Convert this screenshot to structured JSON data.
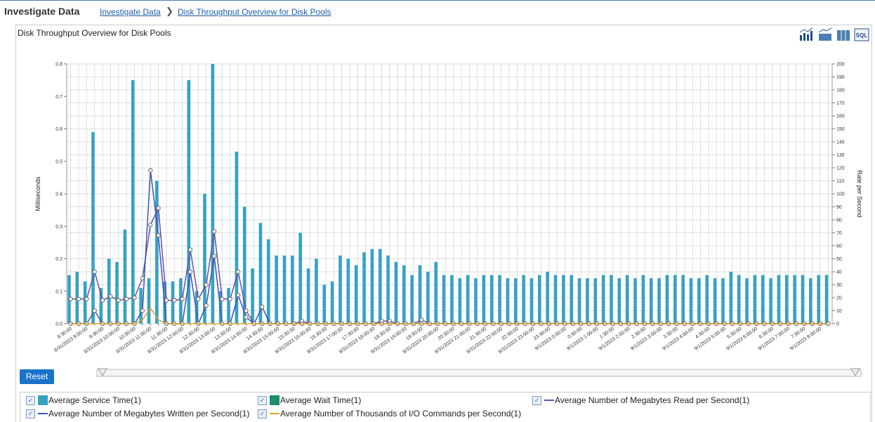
{
  "header": {
    "title": "Investigate Data",
    "breadcrumb": [
      "Investigate Data",
      "Disk Throughput Overview for Disk Pools"
    ]
  },
  "panel": {
    "title": "Disk Throughput Overview for Disk Pools",
    "reset": "Reset",
    "sql_icon": "SQL"
  },
  "chart_data": {
    "type": "combo",
    "ylabel": "Milliseconds",
    "y2label": "Rate per Second",
    "ylim": [
      0,
      0.8
    ],
    "yticks": [
      {
        "value": 0,
        "label": "0.0"
      },
      0.1,
      0.2,
      0.3,
      0.4,
      0.5,
      0.6,
      0.7,
      0.8
    ],
    "y2lim": [
      0,
      200
    ],
    "y2ticks": [
      0,
      10,
      20,
      30,
      40,
      50,
      60,
      70,
      80,
      90,
      100,
      110,
      120,
      130,
      140,
      150,
      160,
      170,
      180,
      190,
      200
    ],
    "grid": true,
    "categories": [
      "8:30:00",
      null,
      "8/31/2023 9:00:00",
      null,
      "9:30:00",
      null,
      "8/31/2023 10:00:00",
      null,
      "10:30:00",
      null,
      "8/31/2023 11:00:00",
      null,
      "11:30:00",
      null,
      "8/31/2023 12:00:00",
      null,
      "12:30:00",
      null,
      "8/31/2023 13:00:00",
      null,
      "13:30:00",
      null,
      "8/31/2023 14:00:00",
      null,
      "14:30:00",
      null,
      "8/31/2023 15:00:00",
      null,
      "15:30:00",
      null,
      "8/31/2023 16:00:00",
      null,
      "16:30:00",
      null,
      "8/31/2023 17:00:00",
      null,
      "17:30:00",
      null,
      "8/31/2023 18:00:00",
      null,
      "18:30:00",
      null,
      "8/31/2023 19:00:00",
      null,
      "19:30:00",
      null,
      "8/31/2023 20:00:00",
      null,
      "20:30:00",
      null,
      "8/31/2023 21:00:00",
      null,
      "21:30:00",
      null,
      "8/31/2023 22:00:00",
      null,
      "22:30:00",
      null,
      "8/31/2023 23:00:00",
      null,
      "23:30:00",
      null,
      "9/1/2023 0:00:00",
      null,
      "0:30:00",
      null,
      "9/1/2023 1:00:00",
      null,
      "1:30:00",
      null,
      "9/1/2023 2:00:00",
      null,
      "2:30:00",
      null,
      "9/1/2023 3:00:00",
      null,
      "3:30:00",
      null,
      "9/1/2023 4:00:00",
      null,
      "4:30:00",
      null,
      "9/1/2023 5:00:00",
      null,
      "5:30:00",
      null,
      "9/1/2023 6:00:00",
      null,
      "6:30:00",
      null,
      "9/1/2023 7:00:00",
      null,
      "7:30:00",
      null,
      "9/1/2023 8:00:00",
      null
    ],
    "series": [
      {
        "name": "Average Service Time(1)",
        "type": "bar",
        "color": "#35a2c4",
        "values": [
          0.15,
          0.16,
          0.13,
          0.59,
          0.11,
          0.2,
          0.19,
          0.29,
          0.75,
          0.11,
          0.14,
          0.44,
          0.13,
          0.13,
          0.14,
          0.75,
          0.1,
          0.4,
          0.8,
          0.1,
          0.11,
          0.53,
          0.36,
          0.17,
          0.31,
          0.26,
          0.21,
          0.21,
          0.21,
          0.28,
          0.17,
          0.2,
          0.12,
          0.13,
          0.21,
          0.2,
          0.18,
          0.22,
          0.23,
          0.23,
          0.21,
          0.19,
          0.18,
          0.15,
          0.18,
          0.16,
          0.19,
          0.15,
          0.15,
          0.14,
          0.15,
          0.14,
          0.15,
          0.15,
          0.15,
          0.14,
          0.14,
          0.15,
          0.14,
          0.15,
          0.16,
          0.15,
          0.15,
          0.15,
          0.14,
          0.14,
          0.14,
          0.15,
          0.15,
          0.14,
          0.15,
          0.14,
          0.15,
          0.14,
          0.14,
          0.15,
          0.15,
          0.15,
          0.14,
          0.14,
          0.15,
          0.14,
          0.14,
          0.16,
          0.15,
          0.14,
          0.15,
          0.15,
          0.14,
          0.15,
          0.15,
          0.15,
          0.15,
          0.14,
          0.15,
          0.15
        ]
      },
      {
        "name": "Average Wait Time(1)",
        "type": "bar",
        "color": "#1e8a6e",
        "values": [
          0,
          0,
          0,
          0,
          0,
          0,
          0,
          0,
          0,
          0,
          0,
          0,
          0,
          0,
          0,
          0,
          0,
          0,
          0,
          0,
          0,
          0,
          0,
          0,
          0,
          0,
          0,
          0,
          0,
          0,
          0,
          0,
          0,
          0,
          0,
          0,
          0,
          0,
          0,
          0,
          0,
          0,
          0,
          0,
          0,
          0,
          0,
          0,
          0,
          0,
          0,
          0,
          0,
          0,
          0,
          0,
          0,
          0,
          0,
          0,
          0,
          0,
          0,
          0,
          0,
          0,
          0,
          0,
          0,
          0,
          0,
          0,
          0,
          0,
          0,
          0,
          0,
          0,
          0,
          0,
          0,
          0,
          0,
          0,
          0,
          0,
          0,
          0,
          0,
          0,
          0,
          0,
          0,
          0,
          0,
          0
        ]
      },
      {
        "name": "Average Number of Megabytes Read per Second(1)",
        "type": "line",
        "axis": "y2",
        "color": "#6a4ea6",
        "markers": true,
        "values": [
          19,
          19,
          19,
          40,
          18,
          21,
          18,
          19,
          20,
          35,
          76,
          89,
          18,
          18,
          19,
          57,
          19,
          30,
          71,
          19,
          19,
          40,
          10,
          0,
          0,
          0,
          0,
          0,
          0,
          2,
          0,
          0,
          0,
          0,
          0,
          0,
          0,
          0,
          0,
          2,
          2,
          0,
          0,
          0,
          3,
          0,
          0,
          0,
          0,
          0,
          0,
          0,
          0,
          0,
          0,
          0,
          0,
          0,
          0,
          0,
          0,
          0,
          0,
          0,
          0,
          0,
          0,
          0,
          0,
          0,
          0,
          0,
          0,
          0,
          0,
          0,
          0,
          0,
          0,
          0,
          0,
          0,
          0,
          0,
          0,
          0,
          0,
          0,
          0,
          0,
          0,
          0,
          0,
          0,
          0,
          0
        ]
      },
      {
        "name": "Average Number of Megabytes Written per Second(1)",
        "type": "line",
        "axis": "y2",
        "color": "#3f51b5",
        "markers": true,
        "values": [
          0,
          0,
          0,
          10,
          0,
          0,
          0,
          0,
          0,
          10,
          118,
          68,
          0,
          0,
          0,
          40,
          0,
          14,
          52,
          0,
          0,
          22,
          5,
          0,
          13,
          0,
          0,
          0,
          0,
          0,
          0,
          0,
          0,
          0,
          0,
          0,
          0,
          0,
          0,
          0,
          0,
          0,
          0,
          0,
          0,
          0,
          0,
          0,
          0,
          0,
          0,
          0,
          0,
          0,
          0,
          0,
          0,
          0,
          0,
          0,
          0,
          0,
          0,
          0,
          0,
          0,
          0,
          0,
          0,
          0,
          0,
          0,
          0,
          0,
          0,
          0,
          0,
          0,
          0,
          0,
          0,
          0,
          0,
          0,
          0,
          0,
          0,
          0,
          0,
          0,
          0,
          0,
          0,
          0,
          0,
          0
        ]
      },
      {
        "name": "Average Number of Thousands of I/O Commands per Second(1)",
        "type": "line",
        "axis": "y2",
        "color": "#e0a030",
        "markers": false,
        "values": [
          0,
          0,
          0,
          0,
          0,
          0,
          0,
          0,
          0,
          3,
          12,
          3,
          0,
          0,
          0,
          0,
          0,
          0,
          0,
          0,
          0,
          0,
          0,
          0,
          0,
          0,
          0,
          0,
          0,
          0,
          0,
          0,
          0,
          0,
          0,
          0,
          0,
          0,
          0,
          0,
          0,
          0,
          0,
          0,
          0,
          0,
          0,
          0,
          0,
          0,
          0,
          0,
          0,
          0,
          0,
          0,
          0,
          0,
          0,
          0,
          0,
          0,
          0,
          0,
          0,
          0,
          0,
          0,
          0,
          0,
          0,
          0,
          0,
          0,
          0,
          0,
          0,
          0,
          0,
          0,
          0,
          0,
          0,
          0,
          0,
          0,
          0,
          0,
          0,
          0,
          0,
          0,
          0,
          0,
          0,
          0
        ]
      }
    ]
  }
}
